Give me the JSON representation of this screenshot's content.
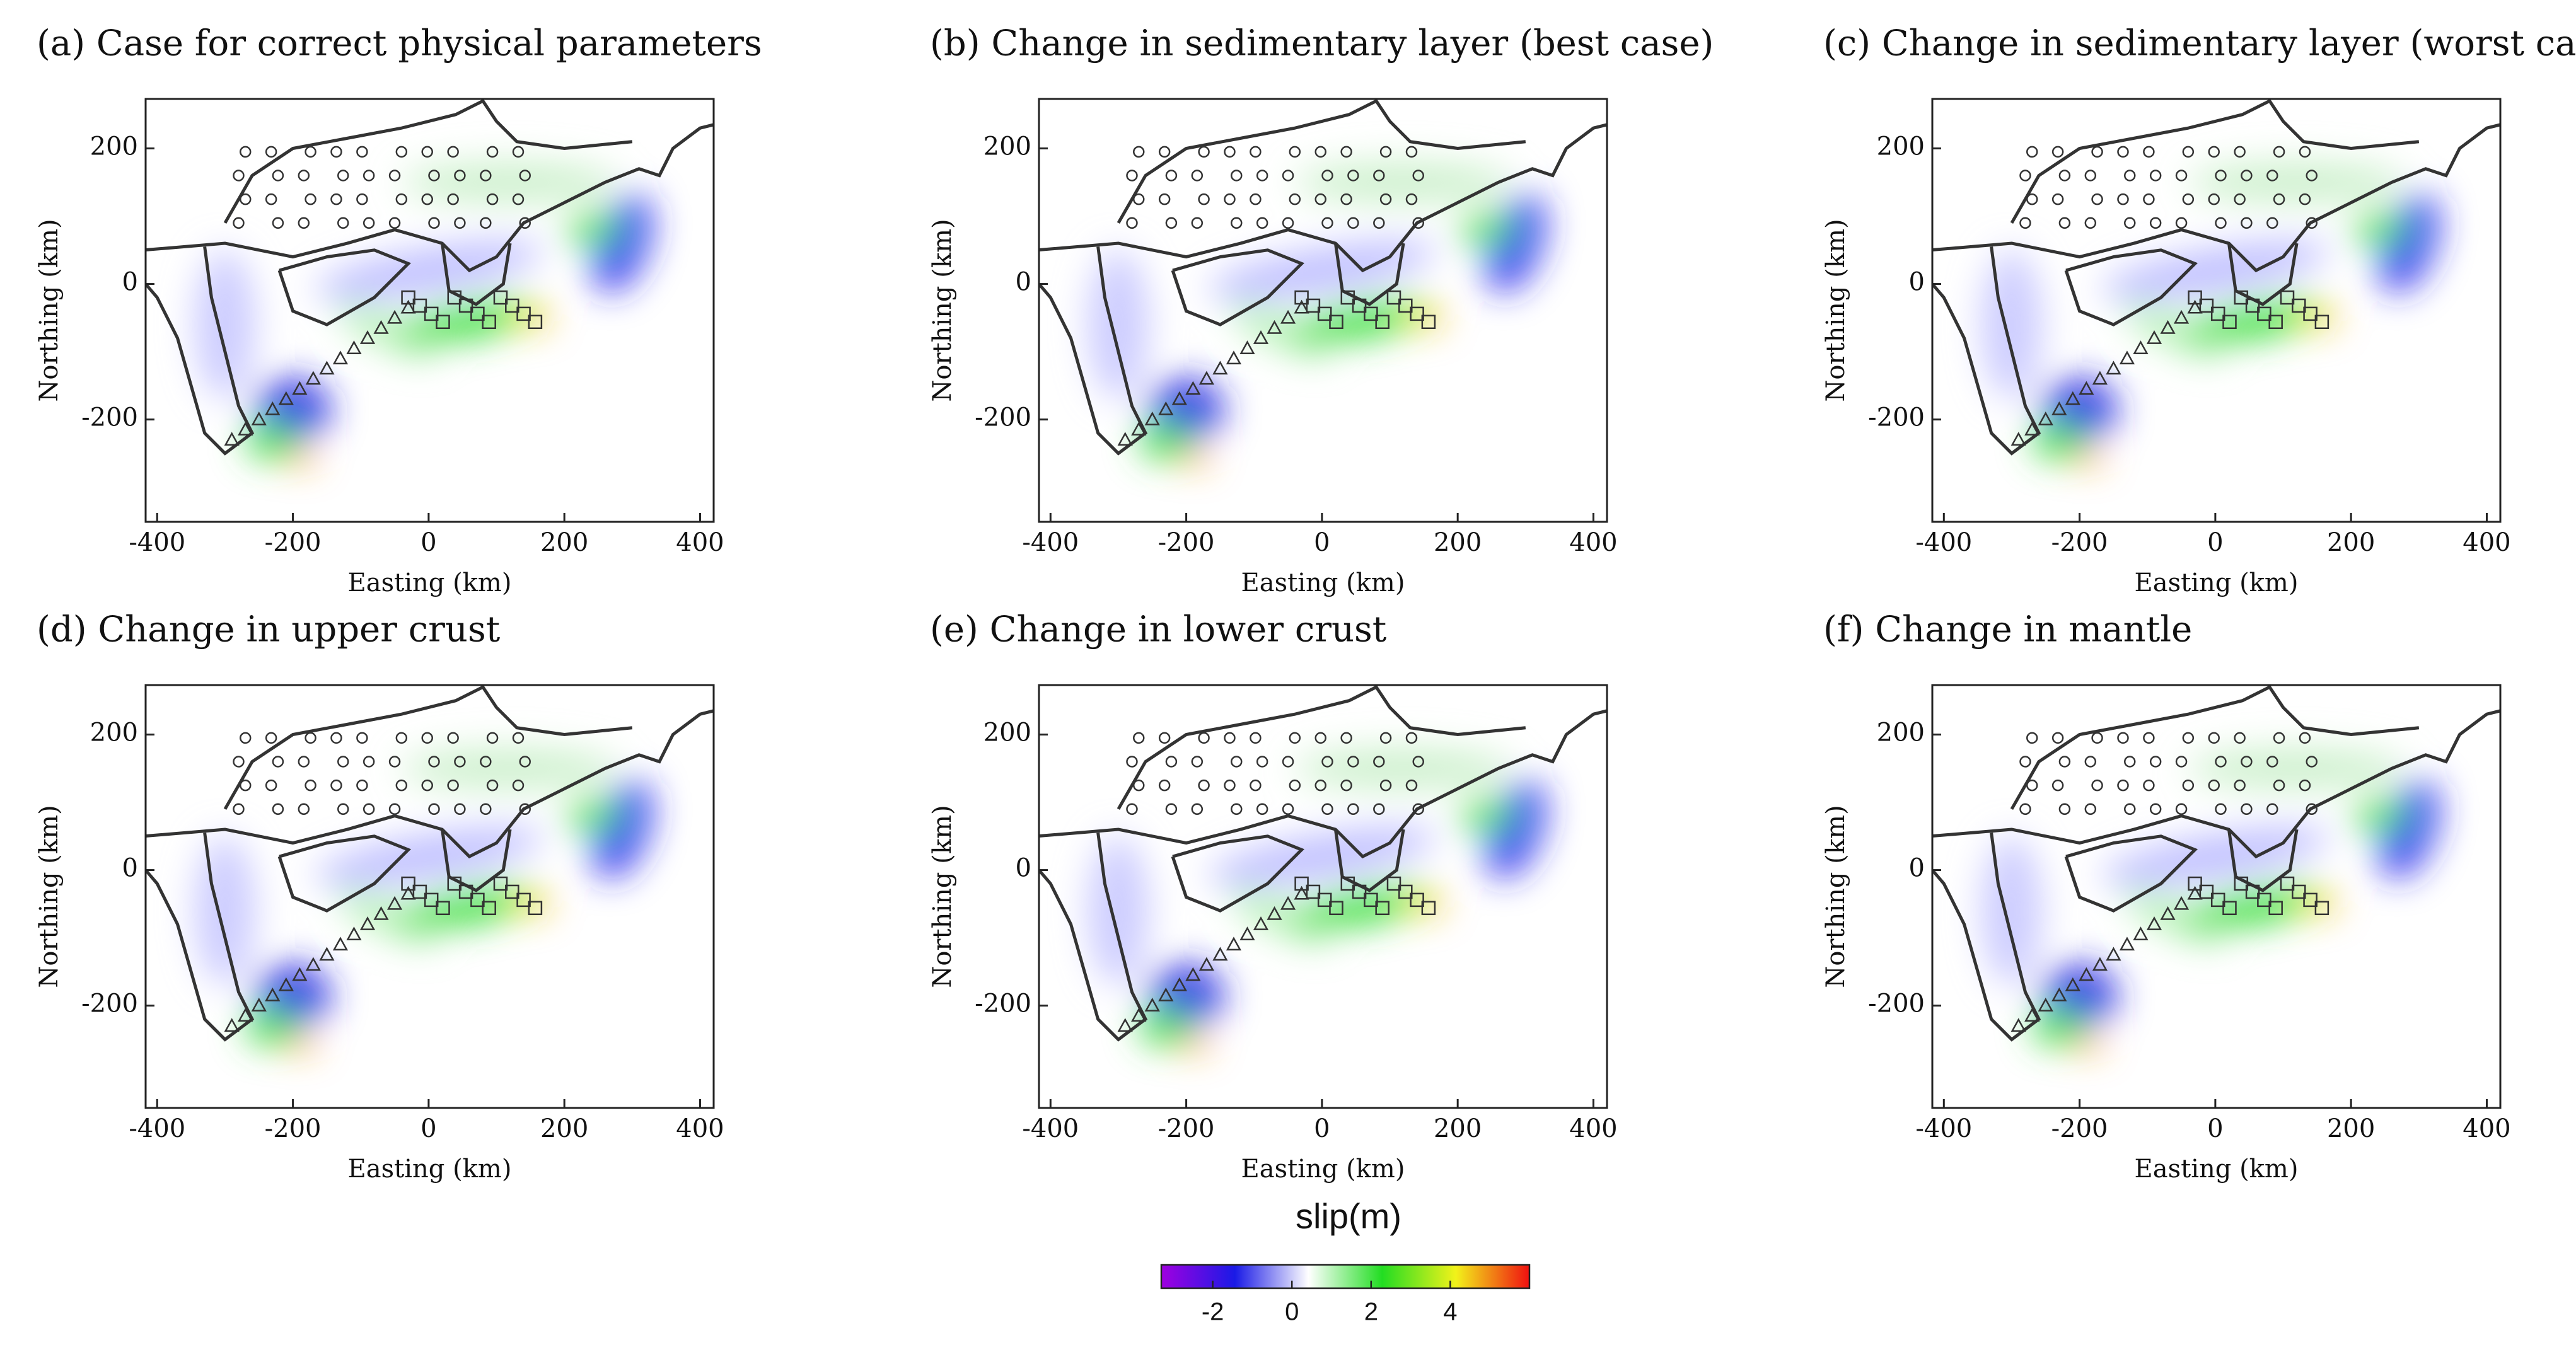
{
  "chart_data": [
    {
      "type": "heatmap",
      "title": "(a) Case for correct physical parameters",
      "x_label": "Easting (km)",
      "y_label": "Northing (km)",
      "xlim": [
        -417,
        420
      ],
      "ylim": [
        -351,
        273
      ],
      "xticks": [
        -400,
        -200,
        0,
        200,
        400
      ],
      "yticks": [
        -200,
        0,
        200
      ]
    },
    {
      "type": "heatmap",
      "title": "(b) Change in sedimentary layer (best case)",
      "x_label": "Easting (km)",
      "y_label": "Northing (km)",
      "xlim": [
        -417,
        420
      ],
      "ylim": [
        -351,
        273
      ],
      "xticks": [
        -400,
        -200,
        0,
        200,
        400
      ],
      "yticks": [
        -200,
        0,
        200
      ]
    },
    {
      "type": "heatmap",
      "title": "(c) Change in sedimentary layer (worst case)",
      "x_label": "Easting (km)",
      "y_label": "Northing (km)",
      "xlim": [
        -417,
        420
      ],
      "ylim": [
        -351,
        273
      ],
      "xticks": [
        -400,
        -200,
        0,
        200,
        400
      ],
      "yticks": [
        -200,
        0,
        200
      ]
    },
    {
      "type": "heatmap",
      "title": "(d) Change in upper crust",
      "x_label": "Easting (km)",
      "y_label": "Northing (km)",
      "xlim": [
        -417,
        420
      ],
      "ylim": [
        -351,
        273
      ],
      "xticks": [
        -400,
        -200,
        0,
        200,
        400
      ],
      "yticks": [
        -200,
        0,
        200
      ]
    },
    {
      "type": "heatmap",
      "title": "(e) Change in lower crust",
      "x_label": "Easting (km)",
      "y_label": "Northing (km)",
      "xlim": [
        -417,
        420
      ],
      "ylim": [
        -351,
        273
      ],
      "xticks": [
        -400,
        -200,
        0,
        200,
        400
      ],
      "yticks": [
        -200,
        0,
        200
      ]
    },
    {
      "type": "heatmap",
      "title": "(f) Change in mantle",
      "x_label": "Easting (km)",
      "y_label": "Northing (km)",
      "xlim": [
        -417,
        420
      ],
      "ylim": [
        -351,
        273
      ],
      "xticks": [
        -400,
        -200,
        0,
        200,
        400
      ],
      "yticks": [
        -200,
        0,
        200
      ]
    }
  ],
  "colorbar": {
    "label": "slip(m)",
    "lim": [
      -3.3,
      6
    ],
    "ticks": [
      -2,
      0,
      2,
      4
    ],
    "colors": [
      "#a000e0",
      "#1a1ae6",
      "#ffffff",
      "#22dd22",
      "#f2f21a",
      "#f01010"
    ]
  }
}
